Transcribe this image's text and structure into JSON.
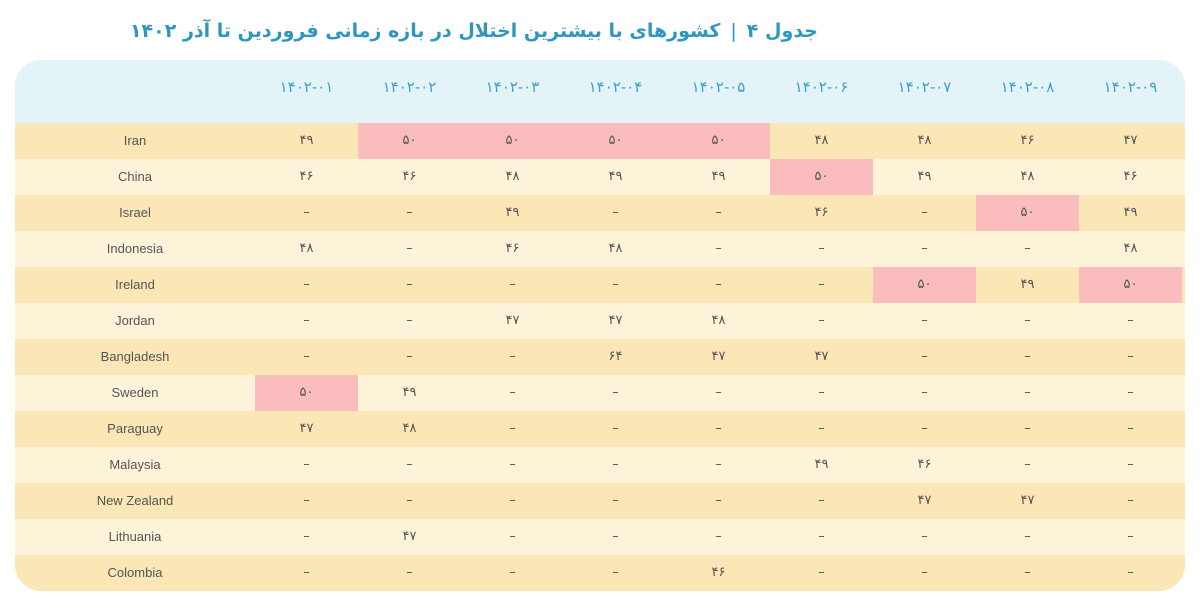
{
  "title": {
    "prefix": "جدول ۴",
    "separator": "|",
    "text": "کشورهای با بیشترین اختلال در بازه زمانی فروردین تا آذر ۱۴۰۲"
  },
  "colors": {
    "header_bg": "#e4f3f8",
    "row_odd": "#fbe6b5",
    "row_even": "#fdf3d9",
    "highlight": "#fbbcbe",
    "title": "#2f97bf",
    "header_text": "#3aa2c9"
  },
  "chart_data": {
    "type": "table",
    "columns": [
      "۱۴۰۲-۰۱",
      "۱۴۰۲-۰۲",
      "۱۴۰۲-۰۳",
      "۱۴۰۲-۰۴",
      "۱۴۰۲-۰۵",
      "۱۴۰۲-۰۶",
      "۱۴۰۲-۰۷",
      "۱۴۰۲-۰۸",
      "۱۴۰۲-۰۹"
    ],
    "rows": [
      {
        "country": "Iran",
        "values": [
          "۴۹",
          "۵۰",
          "۵۰",
          "۵۰",
          "۵۰",
          "۴۸",
          "۴۸",
          "۴۶",
          "۴۷"
        ],
        "highlight": [
          false,
          true,
          true,
          true,
          true,
          false,
          false,
          false,
          false
        ]
      },
      {
        "country": "China",
        "values": [
          "۴۶",
          "۴۶",
          "۴۸",
          "۴۹",
          "۴۹",
          "۵۰",
          "۴۹",
          "۴۸",
          "۴۶"
        ],
        "highlight": [
          false,
          false,
          false,
          false,
          false,
          true,
          false,
          false,
          false
        ]
      },
      {
        "country": "Israel",
        "values": [
          "–",
          "–",
          "۴۹",
          "–",
          "–",
          "۴۶",
          "–",
          "۵۰",
          "۴۹"
        ],
        "highlight": [
          false,
          false,
          false,
          false,
          false,
          false,
          false,
          true,
          false
        ]
      },
      {
        "country": "Indonesia",
        "values": [
          "۴۸",
          "–",
          "۴۶",
          "۴۸",
          "–",
          "–",
          "–",
          "–",
          "۴۸"
        ],
        "highlight": [
          false,
          false,
          false,
          false,
          false,
          false,
          false,
          false,
          false
        ]
      },
      {
        "country": "Ireland",
        "values": [
          "–",
          "–",
          "–",
          "–",
          "–",
          "–",
          "۵۰",
          "۴۹",
          "۵۰"
        ],
        "highlight": [
          false,
          false,
          false,
          false,
          false,
          false,
          true,
          false,
          true
        ]
      },
      {
        "country": "Jordan",
        "values": [
          "–",
          "–",
          "۴۷",
          "۴۷",
          "۴۸",
          "–",
          "–",
          "–",
          "–"
        ],
        "highlight": [
          false,
          false,
          false,
          false,
          false,
          false,
          false,
          false,
          false
        ]
      },
      {
        "country": "Bangladesh",
        "values": [
          "–",
          "–",
          "–",
          "۶۴",
          "۴۷",
          "۴۷",
          "–",
          "–",
          "–"
        ],
        "highlight": [
          false,
          false,
          false,
          false,
          false,
          false,
          false,
          false,
          false
        ]
      },
      {
        "country": "Sweden",
        "values": [
          "۵۰",
          "۴۹",
          "–",
          "–",
          "–",
          "–",
          "–",
          "–",
          "–"
        ],
        "highlight": [
          true,
          false,
          false,
          false,
          false,
          false,
          false,
          false,
          false
        ]
      },
      {
        "country": "Paraguay",
        "values": [
          "۴۷",
          "۴۸",
          "–",
          "–",
          "–",
          "–",
          "–",
          "–",
          "–"
        ],
        "highlight": [
          false,
          false,
          false,
          false,
          false,
          false,
          false,
          false,
          false
        ]
      },
      {
        "country": "Malaysia",
        "values": [
          "–",
          "–",
          "–",
          "–",
          "–",
          "۴۹",
          "۴۶",
          "–",
          "–"
        ],
        "highlight": [
          false,
          false,
          false,
          false,
          false,
          false,
          false,
          false,
          false
        ]
      },
      {
        "country": "New Zealand",
        "values": [
          "–",
          "–",
          "–",
          "–",
          "–",
          "–",
          "۴۷",
          "۴۷",
          "–"
        ],
        "highlight": [
          false,
          false,
          false,
          false,
          false,
          false,
          false,
          false,
          false
        ]
      },
      {
        "country": "Lithuania",
        "values": [
          "–",
          "۴۷",
          "–",
          "–",
          "–",
          "–",
          "–",
          "–",
          "–"
        ],
        "highlight": [
          false,
          false,
          false,
          false,
          false,
          false,
          false,
          false,
          false
        ]
      },
      {
        "country": "Colombia",
        "values": [
          "–",
          "–",
          "–",
          "–",
          "۴۶",
          "–",
          "–",
          "–",
          "–"
        ],
        "highlight": [
          false,
          false,
          false,
          false,
          false,
          false,
          false,
          false,
          false
        ]
      }
    ]
  }
}
